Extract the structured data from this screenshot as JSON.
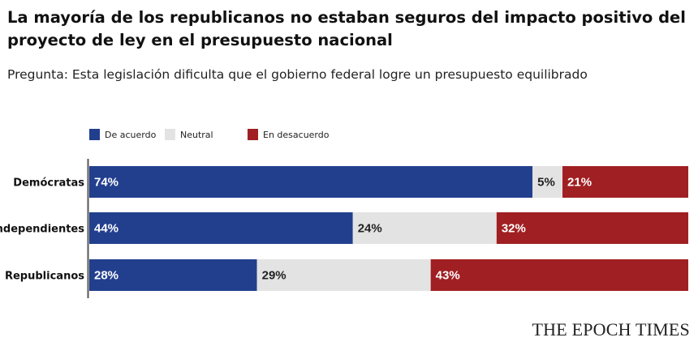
{
  "colors": {
    "agree": "#223f8e",
    "neutral": "#e3e3e3",
    "disagree": "#a01f22"
  },
  "chart_data": {
    "type": "bar",
    "orientation": "horizontal-stacked",
    "title": "La mayoría de los republicanos no estaban seguros del impacto positivo del proyecto de ley en el presupuesto nacional",
    "subtitle": "Pregunta: Esta legislación dificulta que el gobierno federal logre un presupuesto equilibrado",
    "categories": [
      "Demócratas",
      "Independientes",
      "Republicanos"
    ],
    "series": [
      {
        "name": "De acuerdo",
        "values": [
          74,
          44,
          28
        ],
        "labels": [
          "74%",
          "44%",
          "28%"
        ]
      },
      {
        "name": "Neutral",
        "values": [
          5,
          24,
          29
        ],
        "labels": [
          "5%",
          "24%",
          "29%"
        ]
      },
      {
        "name": "En desacuerdo",
        "values": [
          21,
          32,
          43
        ],
        "labels": [
          "21%",
          "32%",
          "43%"
        ]
      }
    ],
    "xlim": [
      0,
      100
    ],
    "legend": "top-left",
    "grid": false
  },
  "brand": "THE EPOCH TIMES"
}
